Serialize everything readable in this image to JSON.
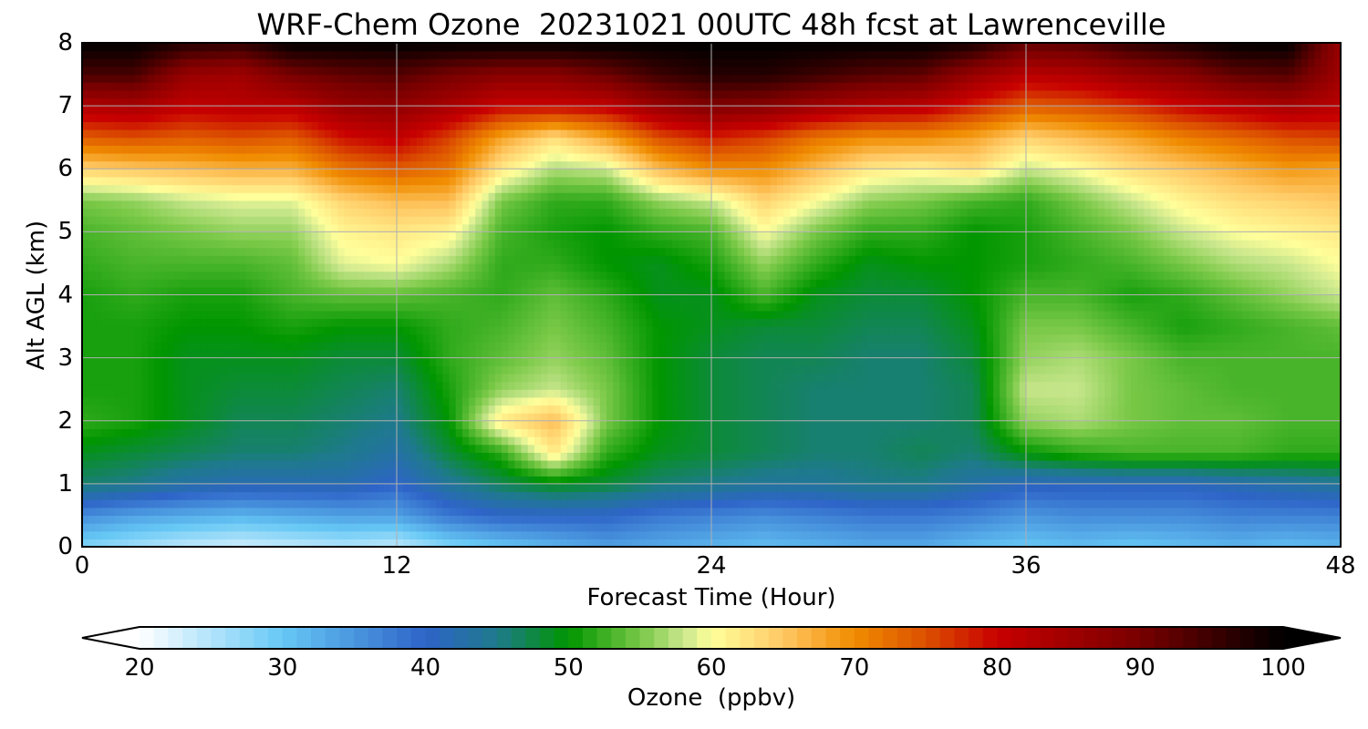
{
  "chart_data": {
    "type": "heatmap",
    "title": "WRF-Chem Ozone  20231021 00UTC 48h fcst at Lawrenceville",
    "xlabel": "Forecast Time (Hour)",
    "ylabel": "Alt AGL (km)",
    "xlim": [
      0,
      48
    ],
    "ylim": [
      0,
      8
    ],
    "x_ticks": [
      "0",
      "12",
      "24",
      "36",
      "48"
    ],
    "y_ticks": [
      "0",
      "1",
      "2",
      "3",
      "4",
      "5",
      "6",
      "7",
      "8"
    ],
    "grid": true,
    "x": [
      0,
      2,
      4,
      6,
      8,
      10,
      12,
      14,
      16,
      18,
      20,
      22,
      24,
      26,
      28,
      30,
      32,
      34,
      36,
      38,
      40,
      42,
      44,
      46,
      48
    ],
    "y": [
      0,
      0.5,
      1,
      1.5,
      2,
      2.5,
      3,
      3.5,
      4,
      4.5,
      5,
      5.5,
      6,
      6.5,
      7,
      7.5,
      8
    ],
    "z_rows": [
      [
        28,
        26,
        24,
        23,
        24,
        25,
        24,
        28,
        30,
        32,
        34,
        33,
        32,
        31,
        32,
        33,
        33,
        31,
        30,
        31,
        30,
        31,
        32,
        31,
        32
      ],
      [
        36,
        34,
        33,
        32,
        33,
        34,
        34,
        38,
        40,
        40,
        40,
        38,
        37,
        36,
        37,
        38,
        38,
        37,
        35,
        36,
        36,
        36,
        37,
        37,
        37
      ],
      [
        46,
        45,
        43,
        42,
        42,
        42,
        40,
        44,
        47,
        49,
        48,
        46,
        45,
        44,
        44,
        45,
        45,
        43,
        41,
        41,
        41,
        41,
        42,
        43,
        44
      ],
      [
        49,
        48,
        47,
        46,
        46,
        45,
        43,
        48,
        52,
        62,
        52,
        49,
        48,
        47,
        46,
        46,
        47,
        46,
        50,
        52,
        53,
        53,
        53,
        52,
        52
      ],
      [
        52,
        51,
        49,
        47,
        47,
        46,
        45,
        50,
        62,
        66,
        55,
        50,
        48,
        47,
        46,
        46,
        46,
        47,
        56,
        57,
        55,
        54,
        54,
        53,
        53
      ],
      [
        51,
        51,
        49,
        48,
        48,
        47,
        46,
        51,
        56,
        58,
        55,
        50,
        48,
        47,
        46,
        46,
        46,
        47,
        58,
        58,
        55,
        54,
        53,
        53,
        53
      ],
      [
        51,
        51,
        49,
        49,
        49,
        48,
        48,
        52,
        54,
        56,
        54,
        50,
        48,
        47,
        47,
        46,
        46,
        48,
        56,
        57,
        55,
        53,
        53,
        53,
        53
      ],
      [
        51,
        51,
        50,
        50,
        51,
        50,
        50,
        52,
        53,
        55,
        53,
        50,
        49,
        48,
        48,
        47,
        47,
        49,
        55,
        55,
        53,
        51,
        52,
        53,
        54
      ],
      [
        51,
        52,
        51,
        51,
        53,
        54,
        54,
        53,
        52,
        54,
        52,
        49,
        49,
        53,
        49,
        48,
        48,
        50,
        53,
        53,
        51,
        52,
        54,
        56,
        58
      ],
      [
        52,
        53,
        53,
        53,
        54,
        59,
        60,
        57,
        52,
        52,
        50,
        49,
        51,
        56,
        52,
        49,
        50,
        50,
        51,
        52,
        53,
        55,
        57,
        58,
        60
      ],
      [
        53,
        54,
        55,
        56,
        56,
        61,
        62,
        61,
        53,
        51,
        50,
        52,
        53,
        60,
        55,
        52,
        52,
        50,
        51,
        53,
        55,
        58,
        60,
        61,
        62
      ],
      [
        55,
        56,
        58,
        59,
        59,
        64,
        66,
        66,
        55,
        52,
        52,
        56,
        58,
        64,
        60,
        56,
        55,
        53,
        52,
        55,
        58,
        61,
        63,
        64,
        65
      ],
      [
        64,
        65,
        66,
        67,
        67,
        72,
        74,
        72,
        62,
        57,
        58,
        66,
        70,
        70,
        66,
        62,
        61,
        63,
        58,
        60,
        63,
        65,
        67,
        69,
        68
      ],
      [
        74,
        75,
        74,
        75,
        74,
        79,
        81,
        76,
        68,
        63,
        68,
        75,
        78,
        76,
        72,
        70,
        70,
        68,
        64,
        66,
        68,
        71,
        73,
        75,
        76
      ],
      [
        83,
        84,
        81,
        82,
        82,
        86,
        87,
        84,
        80,
        80,
        81,
        86,
        89,
        88,
        85,
        83,
        82,
        78,
        74,
        75,
        77,
        80,
        82,
        84,
        82
      ],
      [
        94,
        94,
        86,
        85,
        90,
        92,
        93,
        90,
        88,
        88,
        91,
        95,
        97,
        97,
        95,
        93,
        92,
        86,
        82,
        83,
        86,
        88,
        92,
        93,
        85
      ],
      [
        100,
        100,
        97,
        96,
        100,
        100,
        100,
        100,
        100,
        100,
        100,
        100,
        100,
        100,
        100,
        100,
        100,
        98,
        92,
        93,
        96,
        98,
        100,
        100,
        86
      ]
    ],
    "colorbar": {
      "label": "Ozone  (ppbv)",
      "range": [
        20,
        100
      ],
      "ticks": [
        "20",
        "30",
        "40",
        "50",
        "60",
        "70",
        "80",
        "90",
        "100"
      ],
      "extend": "both",
      "stops": [
        {
          "value": 20,
          "color": "#ffffff"
        },
        {
          "value": 30,
          "color": "#66c8f5"
        },
        {
          "value": 40,
          "color": "#2e64c8"
        },
        {
          "value": 45,
          "color": "#1e7a8c"
        },
        {
          "value": 50,
          "color": "#009600"
        },
        {
          "value": 55,
          "color": "#78c846"
        },
        {
          "value": 58,
          "color": "#c8e68c"
        },
        {
          "value": 60,
          "color": "#ffff9b"
        },
        {
          "value": 65,
          "color": "#ffc864"
        },
        {
          "value": 70,
          "color": "#f08c00"
        },
        {
          "value": 75,
          "color": "#dc5000"
        },
        {
          "value": 80,
          "color": "#c80000"
        },
        {
          "value": 90,
          "color": "#780000"
        },
        {
          "value": 100,
          "color": "#000000"
        }
      ]
    }
  }
}
